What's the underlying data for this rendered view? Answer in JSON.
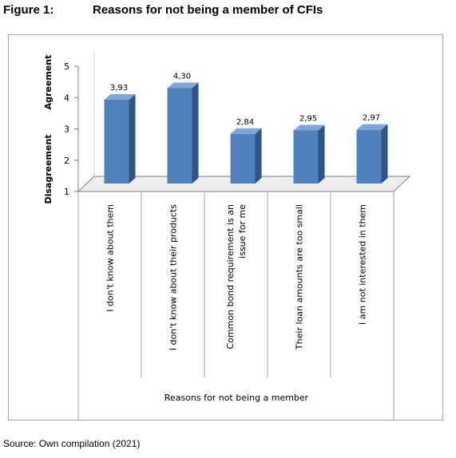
{
  "figure": {
    "number": "Figure 1:",
    "title": "Reasons for not being a member of CFIs",
    "source": "Source:  Own compilation  (2021)"
  },
  "chart_data": {
    "type": "bar",
    "title": "Reasons for not being a member of CFIs",
    "categories": [
      [
        "I don't know about them"
      ],
      [
        "I don't know about their products"
      ],
      [
        "Common bond requirement is an",
        "issue for me"
      ],
      [
        "Their loan amounts are too small"
      ],
      [
        "I am not interested in them"
      ]
    ],
    "series": [
      {
        "values": [
          3.93,
          4.3,
          2.84,
          2.95,
          2.97
        ]
      }
    ],
    "data_labels": [
      "3,93",
      "4,30",
      "2,84",
      "2,95",
      "2,97"
    ],
    "xlabel": "Reasons for not being a member",
    "ylabel_top": "Agreement",
    "ylabel_bottom": "Disagreement",
    "yticks": [
      "1",
      "2",
      "3",
      "4",
      "5"
    ],
    "ylim": [
      1,
      5
    ],
    "grid": false,
    "legend": "none",
    "bar_colors": {
      "front": "#4f81bd",
      "side": "#2f5485",
      "top": "#7fa6d8"
    },
    "floor_color": "#ededed"
  }
}
